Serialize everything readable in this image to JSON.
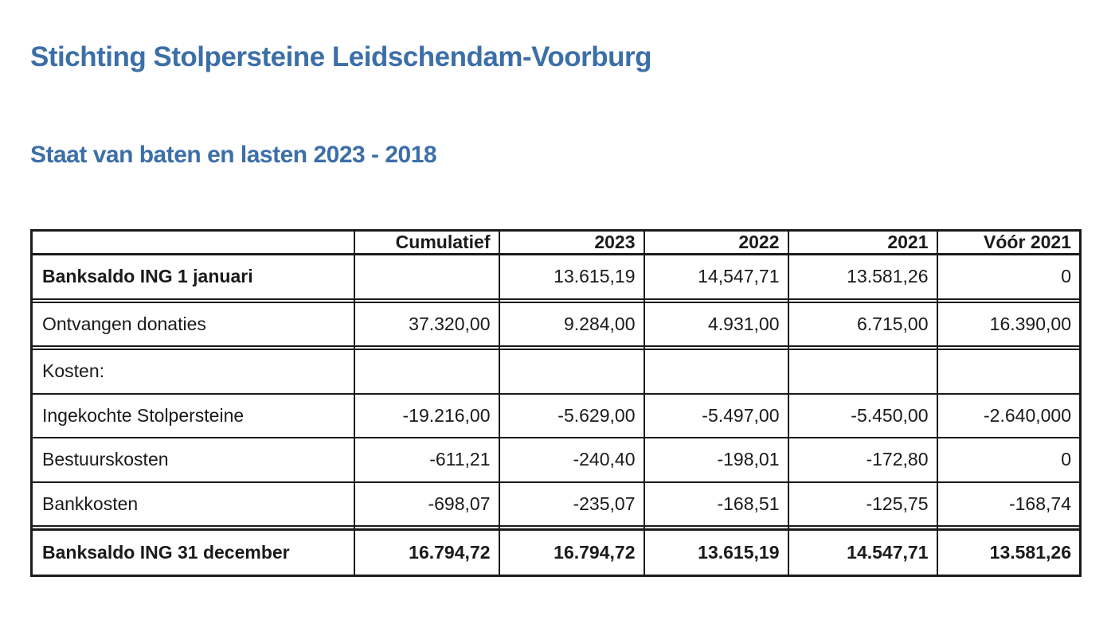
{
  "page": {
    "title": "Stichting Stolpersteine Leidschendam-Voorburg",
    "subtitle": "Staat van baten en lasten 2023 - 2018"
  },
  "colors": {
    "heading_blue": "#3c6fa8",
    "text": "#1a1a1a",
    "border": "#1a1a1a",
    "background": "#ffffff"
  },
  "table": {
    "columns": [
      "",
      "Cumulatief",
      "2023",
      "2022",
      "2021",
      "Vóór 2021"
    ],
    "rows": [
      {
        "label": "Banksaldo ING 1 januari",
        "label_bold": true,
        "values_bold": false,
        "is_total": false,
        "values": [
          "",
          "13.615,19",
          "14,547,71",
          "13.581,26",
          "0"
        ]
      },
      {
        "label": "",
        "label_bold": false,
        "values_bold": false,
        "is_total": false,
        "values": [
          "",
          "",
          "",
          "",
          ""
        ]
      },
      {
        "label": "Ontvangen donaties",
        "label_bold": false,
        "values_bold": false,
        "is_total": false,
        "values": [
          "37.320,00",
          "9.284,00",
          "4.931,00",
          "6.715,00",
          "16.390,00"
        ]
      },
      {
        "label": "",
        "label_bold": false,
        "values_bold": false,
        "is_total": false,
        "values": [
          "",
          "",
          "",
          "",
          ""
        ]
      },
      {
        "label": "Kosten:",
        "label_bold": false,
        "values_bold": false,
        "is_total": false,
        "values": [
          "",
          "",
          "",
          "",
          ""
        ]
      },
      {
        "label": "Ingekochte Stolpersteine",
        "label_bold": false,
        "values_bold": false,
        "is_total": false,
        "values": [
          "-19.216,00",
          "-5.629,00",
          "-5.497,00",
          "-5.450,00",
          "-2.640,000"
        ]
      },
      {
        "label": "Bestuurskosten",
        "label_bold": false,
        "values_bold": false,
        "is_total": false,
        "values": [
          "-611,21",
          "-240,40",
          "-198,01",
          "-172,80",
          "0"
        ]
      },
      {
        "label": "Bankkosten",
        "label_bold": false,
        "values_bold": false,
        "is_total": false,
        "values": [
          "-698,07",
          "-235,07",
          "-168,51",
          "-125,75",
          "-168,74"
        ]
      },
      {
        "label": "",
        "label_bold": false,
        "values_bold": false,
        "is_total": false,
        "values": [
          "",
          "",
          "",
          "",
          ""
        ]
      },
      {
        "label": "Banksaldo ING 31 december",
        "label_bold": true,
        "values_bold": true,
        "is_total": true,
        "values": [
          "16.794,72",
          "16.794,72",
          "13.615,19",
          "14.547,71",
          "13.581,26"
        ]
      }
    ]
  }
}
